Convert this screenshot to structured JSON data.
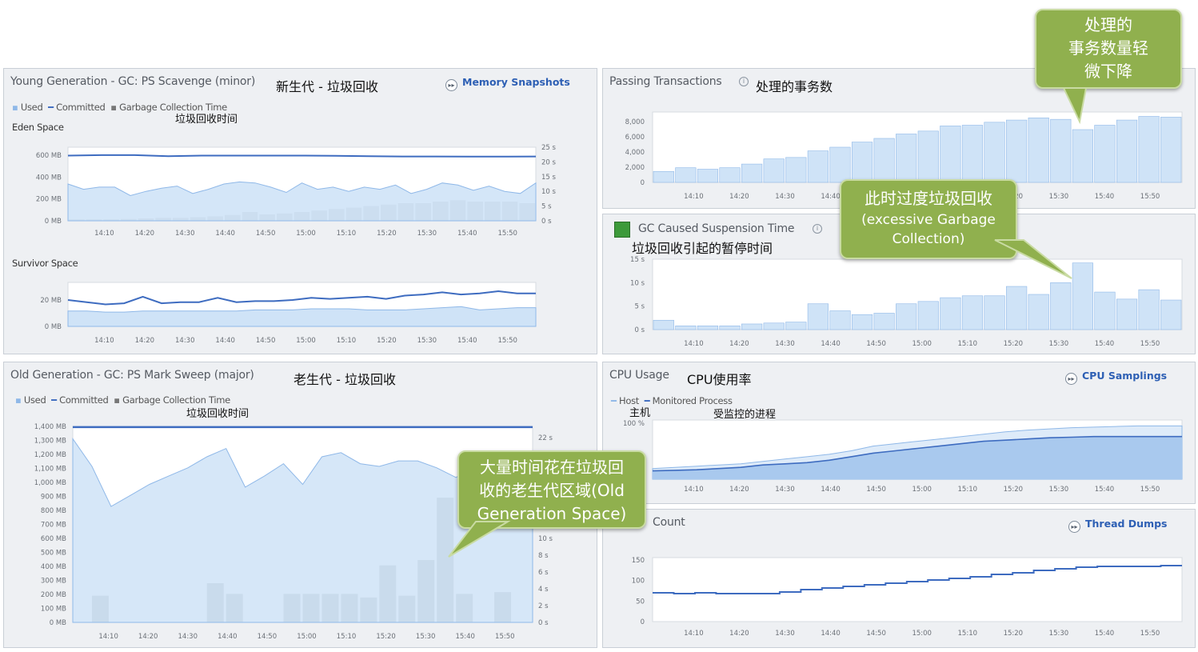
{
  "times": [
    "14:10",
    "14:20",
    "14:30",
    "14:40",
    "14:50",
    "15:00",
    "15:10",
    "15:20",
    "15:30",
    "15:40",
    "15:50"
  ],
  "colors": {
    "committed_line": "#3e6cc0",
    "used_fill": "#cfe3f7",
    "used_line": "#8fb8e8",
    "gc_bar": "#a9abae",
    "accent_green": "#90b04e",
    "link": "#2d5fb4"
  },
  "young": {
    "title": "Young Generation - GC: PS Scavenge (minor)",
    "cn_title": "新生代 - 垃圾回收",
    "link_label": "Memory Snapshots",
    "link_icon": "forward-arrow-icon",
    "legend": {
      "used": "Used",
      "committed": "Committed",
      "gc": "Garbage Collection Time"
    },
    "gc_note": "垃圾回收时间",
    "eden": {
      "label": "Eden Space",
      "y_ticks": [
        "600 MB",
        "400 MB",
        "200 MB",
        "0 MB"
      ],
      "y2_ticks": [
        "25 s",
        "20 s",
        "15 s",
        "10 s",
        "5 s",
        "0 s"
      ],
      "committed": [
        620,
        625,
        625,
        615,
        620,
        620,
        620,
        620,
        618,
        615,
        612,
        612,
        610,
        610,
        612
      ],
      "used": [
        350,
        300,
        320,
        320,
        240,
        280,
        310,
        330,
        260,
        300,
        350,
        370,
        360,
        320,
        270,
        360,
        300,
        320,
        280,
        320,
        300,
        340,
        260,
        300,
        360,
        340,
        290,
        330,
        280,
        260,
        360
      ],
      "gc": [
        0.5,
        0.5,
        0.5,
        0.6,
        0.8,
        1,
        1,
        1.2,
        1.5,
        2,
        3,
        2.2,
        2.5,
        3,
        3.5,
        4,
        4.5,
        5,
        5.5,
        6,
        6,
        6.5,
        7,
        6.5,
        6.5,
        6.5,
        6
      ]
    },
    "survivor": {
      "label": "Survivor Space",
      "y_ticks": [
        "20 MB",
        "0 MB"
      ],
      "committed": [
        24,
        22,
        20,
        21,
        27,
        21,
        22,
        22,
        26,
        22,
        23,
        23,
        24,
        26,
        25,
        26,
        27,
        25,
        28,
        29,
        31,
        29,
        30,
        32,
        30,
        30
      ],
      "used": [
        14,
        14,
        13,
        13,
        14,
        14,
        14,
        14,
        14,
        14,
        15,
        15,
        15,
        16,
        16,
        16,
        15,
        15,
        15,
        16,
        17,
        18,
        15,
        16,
        17,
        17
      ]
    }
  },
  "passing": {
    "title": "Passing Transactions",
    "cn_title": "处理的事务数",
    "y_ticks": [
      "8,000",
      "6,000",
      "4,000",
      "2,000",
      "0"
    ],
    "values": [
      1500,
      2000,
      1800,
      2000,
      2500,
      3200,
      3400,
      4300,
      4800,
      5500,
      6000,
      6600,
      7000,
      7700,
      7800,
      8200,
      8500,
      8800,
      8600,
      7200,
      7800,
      8500,
      9000,
      8900
    ]
  },
  "gc_suspension": {
    "title": "GC Caused Suspension Time",
    "cn_title": "垃圾回收引起的暂停时间",
    "y_ticks": [
      "15 s",
      "10 s",
      "5 s",
      "0 s"
    ],
    "values": [
      2,
      0.8,
      0.8,
      0.8,
      1.2,
      1.4,
      1.6,
      5.5,
      4,
      3.2,
      3.5,
      5.5,
      6,
      6.8,
      7.2,
      7.2,
      9.2,
      7.5,
      10,
      14.2,
      8,
      6.5,
      8.5,
      6.3
    ]
  },
  "old": {
    "title": "Old Generation - GC: PS Mark Sweep (major)",
    "cn_title": "老生代 - 垃圾回收",
    "legend": {
      "used": "Used",
      "committed": "Committed",
      "gc": "Garbage Collection Time"
    },
    "gc_note": "垃圾回收时间",
    "y_ticks": [
      "1,400 MB",
      "1,300 MB",
      "1,200 MB",
      "1,100 MB",
      "1,000 MB",
      "900 MB",
      "800 MB",
      "700 MB",
      "600 MB",
      "500 MB",
      "400 MB",
      "300 MB",
      "200 MB",
      "100 MB",
      "0 MB"
    ],
    "y2_ticks": [
      "22 s",
      "10 s",
      "8 s",
      "6 s",
      "4 s",
      "2 s",
      "0 s"
    ],
    "committed": 1415,
    "used": [
      1330,
      1130,
      840,
      920,
      1000,
      1060,
      1120,
      1200,
      1260,
      980,
      1060,
      1150,
      1000,
      1200,
      1230,
      1150,
      1130,
      1170,
      1170,
      1120,
      1050,
      1130,
      1100,
      1080,
      1100
    ],
    "gc": [
      {
        "t": 0.5,
        "v": 1.5
      },
      {
        "t": 3.5,
        "v": 2.2
      },
      {
        "t": 4,
        "v": 1.6
      },
      {
        "t": 5.5,
        "v": 1.6
      },
      {
        "t": 6,
        "v": 1.6
      },
      {
        "t": 6.5,
        "v": 1.6
      },
      {
        "t": 7,
        "v": 1.6
      },
      {
        "t": 7.5,
        "v": 1.4
      },
      {
        "t": 8,
        "v": 3.2
      },
      {
        "t": 8.5,
        "v": 1.5
      },
      {
        "t": 9,
        "v": 3.5
      },
      {
        "t": 9.5,
        "v": 7
      },
      {
        "t": 10,
        "v": 1.6
      },
      {
        "t": 11,
        "v": 1.7
      }
    ]
  },
  "cpu": {
    "title": "CPU Usage",
    "cn_title": "CPU使用率",
    "link_label": "CPU Samplings",
    "link_icon": "forward-arrow-icon",
    "legend": {
      "host": "Host",
      "process": "Monitored Process"
    },
    "host_note": "主机",
    "process_note": "受监控的进程",
    "y_ticks": [
      "100 %"
    ],
    "host": [
      18,
      20,
      22,
      24,
      26,
      30,
      34,
      38,
      42,
      48,
      56,
      60,
      64,
      68,
      72,
      76,
      80,
      83,
      85,
      87,
      88,
      89,
      90,
      90,
      90
    ],
    "process": [
      14,
      15,
      16,
      18,
      20,
      24,
      26,
      28,
      32,
      38,
      44,
      48,
      52,
      56,
      60,
      64,
      66,
      68,
      70,
      71,
      72,
      72,
      72,
      72,
      72
    ]
  },
  "threads": {
    "title": "Count",
    "link_label": "Thread Dumps",
    "link_icon": "forward-arrow-icon",
    "y_ticks": [
      "150",
      "100",
      "50",
      "0"
    ],
    "values": [
      72,
      70,
      72,
      70,
      70,
      70,
      74,
      80,
      84,
      88,
      92,
      96,
      100,
      104,
      108,
      112,
      118,
      122,
      128,
      132,
      136,
      138,
      138,
      138,
      140
    ]
  },
  "callouts": {
    "top": [
      "处理的",
      "事务数量轻",
      "微下降"
    ],
    "mid_cn": "此时过度垃圾回收",
    "mid_en": [
      "(excessive Garbage",
      "Collection)"
    ],
    "bottom": [
      "大量时间花在垃圾回",
      "收的老生代区域(Old",
      "Generation Space)"
    ]
  }
}
